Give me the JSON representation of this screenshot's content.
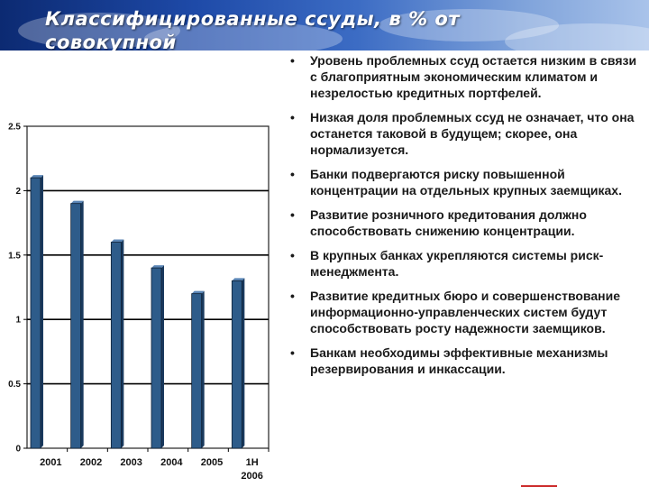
{
  "slide": {
    "title": "Классифицированные ссуды, в % от совокупной"
  },
  "bullets": [
    "Уровень проблемных ссуд остается низким в связи с благоприятным экономическим климатом и  незрелостью кредитных портфелей.",
    "Низкая доля проблемных ссуд не означает, что она останется таковой в будущем; скорее, она нормализуется.",
    "Банки подвергаются риску повышенной концентрации на отдельных крупных заемщиках.",
    "Развитие розничного кредитования должно способствовать снижению концентрации.",
    "В крупных банках укрепляются системы риск-менеджмента.",
    "Развитие кредитных бюро  и совершенствование информационно-управленческих систем будут способствовать росту надежности заемщиков.",
    "Банкам необходимы эффективные механизмы резервирования и инкассации."
  ],
  "bullet_glyph": "•",
  "chart_data": {
    "type": "bar",
    "categories": [
      "2001",
      "2002",
      "2003",
      "2004",
      "2005",
      "1H 2006"
    ],
    "values": [
      2.1,
      1.9,
      1.6,
      1.4,
      1.2,
      1.3
    ],
    "yticks": [
      "0",
      "0.5",
      "1",
      "1.5",
      "2",
      "2.5"
    ],
    "ylim": [
      0,
      2.5
    ],
    "grid": true,
    "bar_color": "#2e5c8a",
    "title": "",
    "xlabel": "",
    "ylabel": ""
  }
}
